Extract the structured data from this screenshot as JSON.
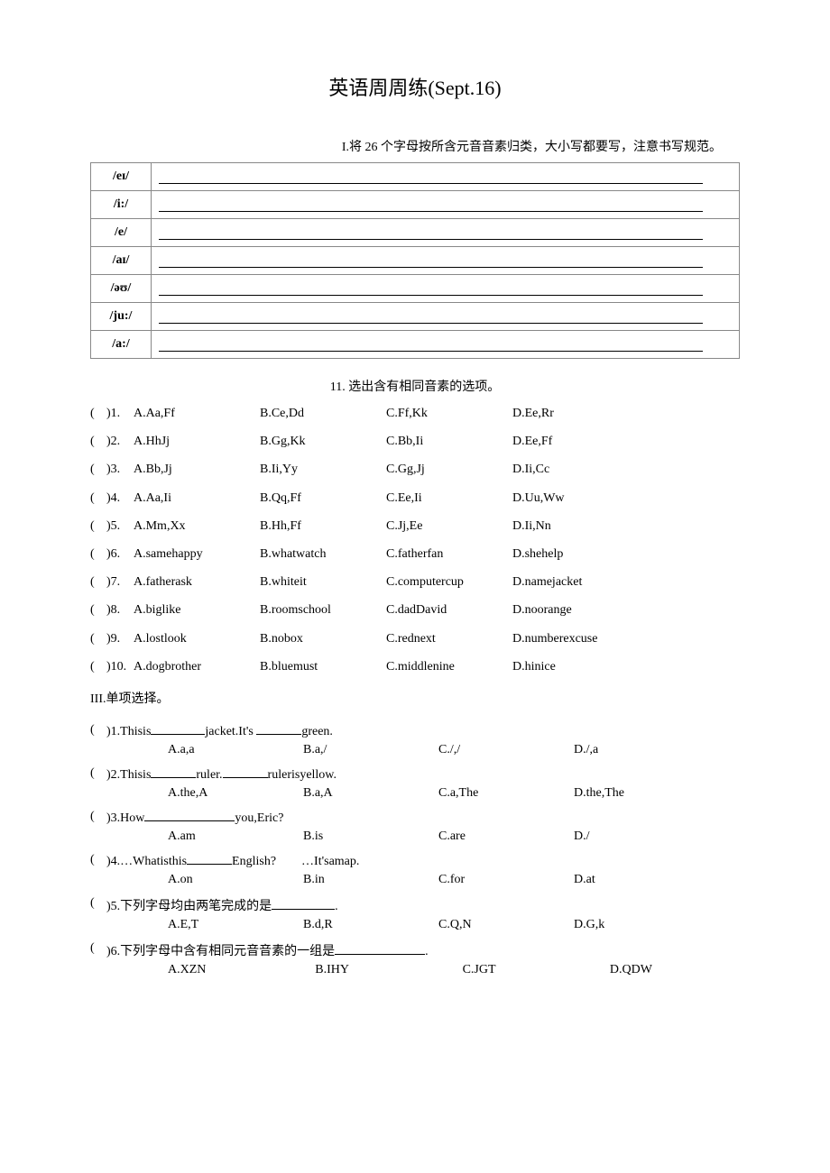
{
  "title": "英语周周练(Sept.16)",
  "section1_instruction": "I.将 26 个字母按所含元音音素归类，大小写都要写，注意书写规范。",
  "phonetic_rows": [
    {
      "sym": "/eɪ/"
    },
    {
      "sym": "/i:/"
    },
    {
      "sym": "/e/"
    },
    {
      "sym": "/aɪ/"
    },
    {
      "sym": "/əʊ/"
    },
    {
      "sym": "/ju:/"
    },
    {
      "sym": "/a:/"
    }
  ],
  "section2_title": "11. 选出含有相同音素的选项。",
  "section2_items": [
    {
      "n": "1",
      "a": "A.Aa,Ff",
      "b": "B.Ce,Dd",
      "c": "C.Ff,Kk",
      "d": "D.Ee,Rr"
    },
    {
      "n": "2",
      "a": "A.HhJj",
      "b": "B.Gg,Kk",
      "c": "C.Bb,Ii",
      "d": "D.Ee,Ff"
    },
    {
      "n": "3",
      "a": "A.Bb,Jj",
      "b": "B.Ii,Yy",
      "c": "C.Gg,Jj",
      "d": "D.Ii,Cc"
    },
    {
      "n": "4",
      "a": "A.Aa,Ii",
      "b": "B.Qq,Ff",
      "c": "C.Ee,Ii",
      "d": "D.Uu,Ww"
    },
    {
      "n": "5",
      "a": "A.Mm,Xx",
      "b": "B.Hh,Ff",
      "c": "C.Jj,Ee",
      "d": "D.Ii,Nn"
    },
    {
      "n": "6",
      "a": "A.samehappy",
      "b": "B.whatwatch",
      "c": "C.fatherfan",
      "d": "D.shehelp"
    },
    {
      "n": "7",
      "a": "A.fatherask",
      "b": "B.whiteit",
      "c": "C.computercup",
      "d": "D.namejacket"
    },
    {
      "n": "8",
      "a": "A.biglike",
      "b": "B.roomschool",
      "c": "C.dadDavid",
      "d": "D.noorange"
    },
    {
      "n": "9",
      "a": "A.lostlook",
      "b": "B.nobox",
      "c": "C.rednext",
      "d": "D.numberexcuse"
    },
    {
      "n": "10",
      "a": "A.dogbrother",
      "b": "B.bluemust",
      "c": "C.middlenine",
      "d": "D.hinice"
    }
  ],
  "section3_title": "III.单项选择。",
  "q3_1": {
    "stem_pre": ")1.Thisis",
    "stem_mid": "jacket.It's",
    "stem_post": "green.",
    "a": "A.a,a",
    "b": "B.a,/",
    "c": "C./,/",
    "d": "D./,a"
  },
  "q3_2": {
    "stem_pre": ")2.Thisis",
    "stem_mid": "ruler.",
    "stem_post": "rulerisyellow.",
    "a": "A.the,A",
    "b": "B.a,A",
    "c": "C.a,The",
    "d": "D.the,The"
  },
  "q3_3": {
    "stem_pre": ")3.How",
    "stem_post": "you,Eric?",
    "a": "A.am",
    "b": "B.is",
    "c": "C.are",
    "d": "D./"
  },
  "q3_4": {
    "stem_pre": ")4.…Whatisthis",
    "stem_mid": "English?",
    "stem_post": "…It'samap.",
    "a": "A.on",
    "b": "B.in",
    "c": "C.for",
    "d": "D.at"
  },
  "q3_5": {
    "stem_pre": ")5.下列字母均由两笔完成的是",
    "a": "A.E,T",
    "b": "B.d,R",
    "c": "C.Q,N",
    "d": "D.G,k"
  },
  "q3_6": {
    "stem_pre": ")6.下列字母中含有相同元音音素的一组是",
    "a": "A.XZN",
    "b": "B.IHY",
    "c": "C.JGT",
    "d": "D.QDW"
  }
}
